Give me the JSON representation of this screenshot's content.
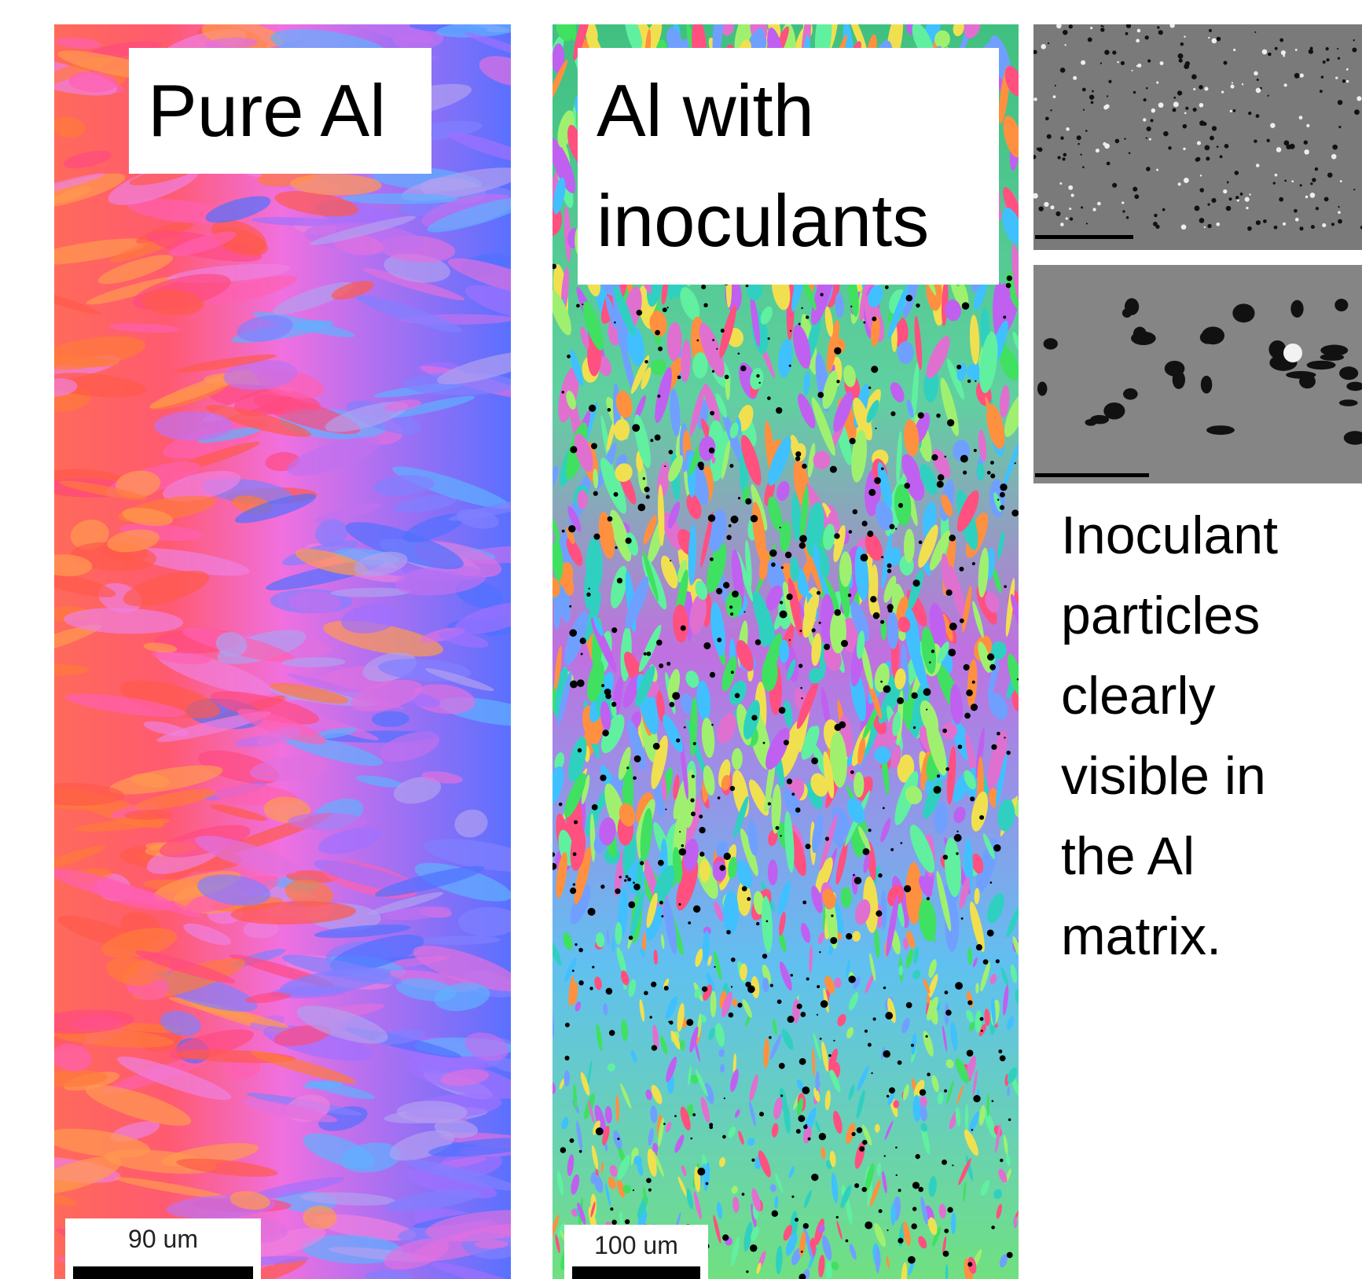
{
  "panels": [
    {
      "label": [
        "Pure Al"
      ],
      "scale_bar": "90 um"
    },
    {
      "label": [
        "Al with",
        "inoculants"
      ],
      "scale_bar": "100 um"
    }
  ],
  "caption": [
    "Inoculant",
    "particles",
    "clearly",
    "visible in",
    "the Al",
    "matrix."
  ]
}
